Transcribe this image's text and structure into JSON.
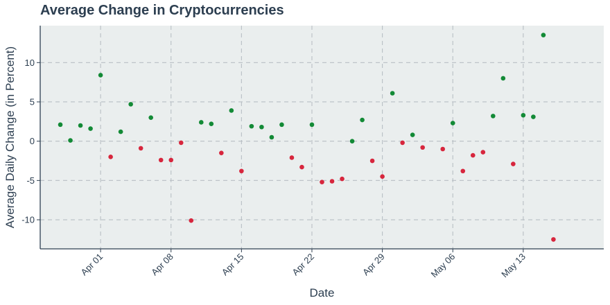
{
  "chart_data": {
    "type": "scatter",
    "title": "Average Change in Cryptocurrencies",
    "xlabel": "Date",
    "ylabel": "Average Daily Change (in Percent)",
    "x_ticks": [
      "Apr 01",
      "Apr 08",
      "Apr 15",
      "Apr 22",
      "Apr 29",
      "May 06",
      "May 13"
    ],
    "y_ticks": [
      -10,
      -5,
      0,
      5,
      10
    ],
    "ylim": [
      -13.7,
      14.7
    ],
    "xlim": [
      "2024-03-26",
      "2024-05-21"
    ],
    "grid": true,
    "colors": {
      "positive": "#138a36",
      "negative": "#d7263d",
      "plot_bg": "#eaeeee",
      "axis": "#2c3e50",
      "grid": "#b8bfc4"
    },
    "points": [
      {
        "x": "2024-03-28",
        "y": 2.1
      },
      {
        "x": "2024-03-29",
        "y": 0.1
      },
      {
        "x": "2024-03-30",
        "y": 2.0
      },
      {
        "x": "2024-03-31",
        "y": 1.6
      },
      {
        "x": "2024-04-01",
        "y": 8.4
      },
      {
        "x": "2024-04-02",
        "y": -2.0
      },
      {
        "x": "2024-04-03",
        "y": 1.2
      },
      {
        "x": "2024-04-04",
        "y": 4.7
      },
      {
        "x": "2024-04-05",
        "y": -0.9
      },
      {
        "x": "2024-04-06",
        "y": 3.0
      },
      {
        "x": "2024-04-07",
        "y": -2.4
      },
      {
        "x": "2024-04-08",
        "y": -2.4
      },
      {
        "x": "2024-04-09",
        "y": -0.2
      },
      {
        "x": "2024-04-10",
        "y": -10.1
      },
      {
        "x": "2024-04-11",
        "y": 2.4
      },
      {
        "x": "2024-04-12",
        "y": 2.2
      },
      {
        "x": "2024-04-13",
        "y": -1.5
      },
      {
        "x": "2024-04-14",
        "y": 3.9
      },
      {
        "x": "2024-04-15",
        "y": -3.8
      },
      {
        "x": "2024-04-16",
        "y": 1.9
      },
      {
        "x": "2024-04-17",
        "y": 1.8
      },
      {
        "x": "2024-04-18",
        "y": 0.5
      },
      {
        "x": "2024-04-19",
        "y": 2.1
      },
      {
        "x": "2024-04-20",
        "y": -2.1
      },
      {
        "x": "2024-04-21",
        "y": -3.3
      },
      {
        "x": "2024-04-22",
        "y": 2.1
      },
      {
        "x": "2024-04-23",
        "y": -5.2
      },
      {
        "x": "2024-04-24",
        "y": -5.1
      },
      {
        "x": "2024-04-25",
        "y": -4.8
      },
      {
        "x": "2024-04-26",
        "y": 0.0
      },
      {
        "x": "2024-04-27",
        "y": 2.7
      },
      {
        "x": "2024-04-28",
        "y": -2.5
      },
      {
        "x": "2024-04-29",
        "y": -4.5
      },
      {
        "x": "2024-04-30",
        "y": 6.1
      },
      {
        "x": "2024-05-01",
        "y": -0.2
      },
      {
        "x": "2024-05-02",
        "y": 0.8
      },
      {
        "x": "2024-05-03",
        "y": -0.8
      },
      {
        "x": "2024-05-05",
        "y": -1.0
      },
      {
        "x": "2024-05-06",
        "y": 2.3
      },
      {
        "x": "2024-05-07",
        "y": -3.8
      },
      {
        "x": "2024-05-08",
        "y": -1.8
      },
      {
        "x": "2024-05-09",
        "y": -1.4
      },
      {
        "x": "2024-05-10",
        "y": 3.2
      },
      {
        "x": "2024-05-11",
        "y": 8.0
      },
      {
        "x": "2024-05-12",
        "y": -2.9
      },
      {
        "x": "2024-05-13",
        "y": 3.3
      },
      {
        "x": "2024-05-14",
        "y": 3.1
      },
      {
        "x": "2024-05-15",
        "y": 13.5
      },
      {
        "x": "2024-05-16",
        "y": -12.5
      }
    ]
  }
}
